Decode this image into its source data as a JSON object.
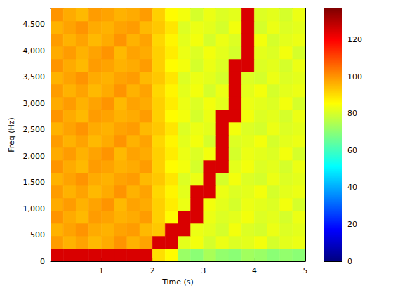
{
  "chart_data": {
    "type": "heatmap",
    "x_label": "Time (s)",
    "y_label": "Freq (Hz)",
    "xlim": [
      0,
      5
    ],
    "xticks": [
      1,
      2,
      3,
      4,
      5
    ],
    "ylim": [
      0,
      4800
    ],
    "yticks": [
      0,
      500,
      1000,
      1500,
      2000,
      2500,
      3000,
      3500,
      4000,
      4500
    ],
    "time_bins": [
      0,
      0.25,
      0.5,
      0.75,
      1,
      1.25,
      1.5,
      1.75,
      2,
      2.25,
      2.5,
      2.75,
      3,
      3.25,
      3.5,
      3.75,
      4,
      4.25,
      4.5,
      4.75,
      5
    ],
    "freq_bins": [
      0,
      240,
      480,
      720,
      960,
      1200,
      1440,
      1680,
      1920,
      2160,
      2400,
      2640,
      2880,
      3120,
      3360,
      3600,
      3840,
      4080,
      4320,
      4560,
      4800
    ],
    "cells": [
      [
        125,
        125,
        125,
        125,
        125,
        125,
        125,
        125,
        90,
        86,
        72,
        70,
        74,
        71,
        70,
        73,
        72,
        70,
        71,
        70
      ],
      [
        99,
        96,
        98,
        95,
        97,
        100,
        96,
        98,
        125,
        125,
        82,
        84,
        80,
        83,
        81,
        82,
        84,
        80,
        82,
        83
      ],
      [
        96,
        98,
        100,
        97,
        96,
        98,
        99,
        95,
        93,
        125,
        125,
        83,
        82,
        80,
        84,
        81,
        80,
        83,
        81,
        82
      ],
      [
        100,
        97,
        95,
        99,
        98,
        96,
        97,
        99,
        92,
        86,
        125,
        125,
        83,
        81,
        82,
        84,
        81,
        82,
        80,
        83
      ],
      [
        97,
        99,
        96,
        98,
        100,
        95,
        98,
        97,
        92,
        88,
        83,
        125,
        84,
        82,
        80,
        83,
        82,
        81,
        84,
        80
      ],
      [
        99,
        96,
        98,
        95,
        97,
        100,
        96,
        98,
        91,
        87,
        82,
        125,
        125,
        83,
        81,
        82,
        84,
        80,
        82,
        83
      ],
      [
        96,
        98,
        100,
        97,
        96,
        98,
        99,
        95,
        93,
        89,
        81,
        83,
        125,
        80,
        84,
        81,
        80,
        83,
        81,
        82
      ],
      [
        100,
        97,
        95,
        99,
        98,
        96,
        97,
        99,
        92,
        86,
        84,
        80,
        125,
        125,
        82,
        84,
        81,
        82,
        80,
        83
      ],
      [
        97,
        99,
        96,
        98,
        100,
        95,
        98,
        97,
        92,
        88,
        83,
        81,
        84,
        125,
        80,
        83,
        82,
        81,
        84,
        80
      ],
      [
        99,
        96,
        98,
        95,
        97,
        100,
        96,
        98,
        91,
        87,
        82,
        84,
        80,
        125,
        81,
        82,
        84,
        80,
        82,
        83
      ],
      [
        96,
        98,
        100,
        97,
        96,
        98,
        99,
        95,
        93,
        89,
        81,
        83,
        82,
        125,
        84,
        81,
        80,
        83,
        81,
        82
      ],
      [
        100,
        97,
        95,
        99,
        98,
        96,
        97,
        99,
        92,
        86,
        84,
        80,
        83,
        125,
        125,
        84,
        81,
        82,
        80,
        83
      ],
      [
        97,
        99,
        96,
        98,
        100,
        95,
        98,
        97,
        92,
        88,
        83,
        81,
        84,
        82,
        125,
        83,
        82,
        81,
        84,
        80
      ],
      [
        99,
        96,
        98,
        95,
        97,
        100,
        96,
        98,
        91,
        87,
        82,
        84,
        80,
        83,
        125,
        82,
        84,
        80,
        82,
        83
      ],
      [
        96,
        98,
        100,
        97,
        96,
        98,
        99,
        95,
        93,
        89,
        81,
        83,
        82,
        80,
        125,
        81,
        80,
        83,
        81,
        82
      ],
      [
        100,
        97,
        95,
        99,
        98,
        96,
        97,
        99,
        92,
        86,
        84,
        80,
        83,
        81,
        125,
        125,
        81,
        82,
        80,
        83
      ],
      [
        97,
        99,
        96,
        98,
        100,
        95,
        98,
        97,
        92,
        88,
        83,
        81,
        84,
        82,
        80,
        125,
        82,
        81,
        84,
        80
      ],
      [
        99,
        96,
        98,
        95,
        97,
        100,
        96,
        98,
        91,
        87,
        82,
        84,
        80,
        83,
        81,
        125,
        84,
        80,
        82,
        83
      ],
      [
        96,
        98,
        100,
        97,
        96,
        98,
        99,
        95,
        93,
        89,
        81,
        83,
        82,
        80,
        84,
        125,
        80,
        83,
        81,
        82
      ],
      [
        100,
        97,
        95,
        99,
        98,
        96,
        97,
        99,
        92,
        86,
        84,
        80,
        83,
        81,
        82,
        125,
        81,
        82,
        80,
        83
      ]
    ],
    "colorbar_range": [
      0,
      137
    ],
    "colorbar_ticks": [
      0,
      20,
      40,
      60,
      80,
      100,
      120
    ]
  }
}
